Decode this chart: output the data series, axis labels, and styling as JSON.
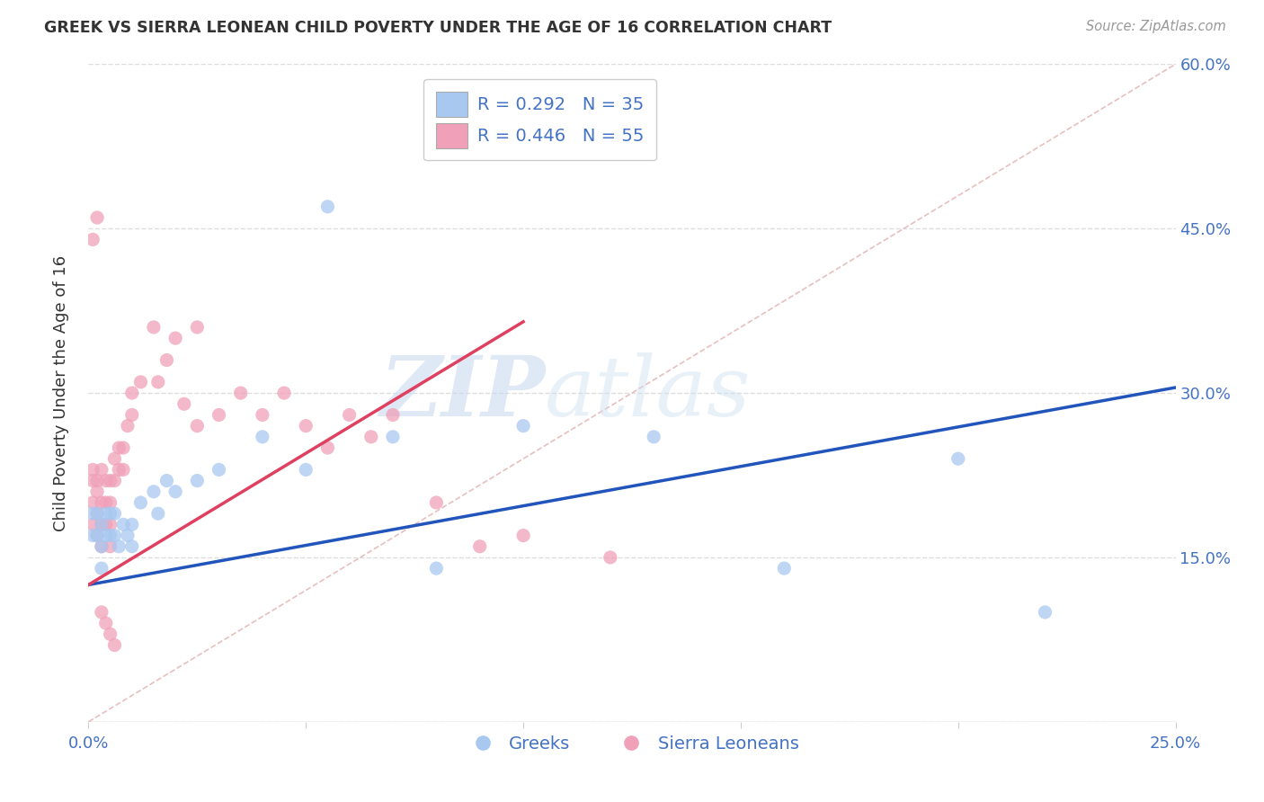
{
  "title": "GREEK VS SIERRA LEONEAN CHILD POVERTY UNDER THE AGE OF 16 CORRELATION CHART",
  "source": "Source: ZipAtlas.com",
  "xlim": [
    0.0,
    0.25
  ],
  "ylim": [
    0.0,
    0.6
  ],
  "ylabel": "Child Poverty Under the Age of 16",
  "legend_greek": "Greeks",
  "legend_sierra": "Sierra Leoneans",
  "greek_R": "0.292",
  "greek_N": "35",
  "sierra_R": "0.446",
  "sierra_N": "55",
  "greek_color": "#a8c8f0",
  "sierra_color": "#f0a0b8",
  "greek_line_color": "#2255bb",
  "sierra_line_color": "#e04060",
  "diagonal_color": "#e0b0b0",
  "background_color": "#ffffff",
  "watermark_zip": "ZIP",
  "watermark_atlas": "atlas",
  "grid_color": "#dddddd",
  "tick_color": "#4472c4",
  "title_color": "#333333",
  "source_color": "#999999",
  "ylabel_color": "#333333",
  "greek_x": [
    0.001,
    0.001,
    0.002,
    0.002,
    0.003,
    0.003,
    0.003,
    0.004,
    0.004,
    0.005,
    0.005,
    0.006,
    0.006,
    0.007,
    0.008,
    0.009,
    0.01,
    0.01,
    0.012,
    0.015,
    0.016,
    0.018,
    0.02,
    0.025,
    0.03,
    0.04,
    0.05,
    0.055,
    0.07,
    0.08,
    0.1,
    0.13,
    0.16,
    0.2,
    0.22
  ],
  "greek_y": [
    0.19,
    0.17,
    0.19,
    0.17,
    0.18,
    0.16,
    0.14,
    0.19,
    0.17,
    0.19,
    0.17,
    0.19,
    0.17,
    0.16,
    0.18,
    0.17,
    0.18,
    0.16,
    0.2,
    0.21,
    0.19,
    0.22,
    0.21,
    0.22,
    0.23,
    0.26,
    0.23,
    0.47,
    0.26,
    0.14,
    0.27,
    0.26,
    0.14,
    0.24,
    0.1
  ],
  "sierra_x": [
    0.001,
    0.001,
    0.001,
    0.001,
    0.002,
    0.002,
    0.002,
    0.002,
    0.003,
    0.003,
    0.003,
    0.003,
    0.004,
    0.004,
    0.004,
    0.005,
    0.005,
    0.005,
    0.005,
    0.006,
    0.006,
    0.007,
    0.007,
    0.008,
    0.008,
    0.009,
    0.01,
    0.01,
    0.012,
    0.015,
    0.016,
    0.018,
    0.02,
    0.022,
    0.025,
    0.025,
    0.03,
    0.035,
    0.04,
    0.045,
    0.05,
    0.055,
    0.06,
    0.065,
    0.07,
    0.08,
    0.09,
    0.1,
    0.12,
    0.001,
    0.002,
    0.003,
    0.004,
    0.005,
    0.006
  ],
  "sierra_y": [
    0.23,
    0.22,
    0.2,
    0.18,
    0.22,
    0.21,
    0.19,
    0.17,
    0.23,
    0.2,
    0.18,
    0.16,
    0.22,
    0.2,
    0.18,
    0.22,
    0.2,
    0.18,
    0.16,
    0.24,
    0.22,
    0.25,
    0.23,
    0.25,
    0.23,
    0.27,
    0.3,
    0.28,
    0.31,
    0.36,
    0.31,
    0.33,
    0.35,
    0.29,
    0.36,
    0.27,
    0.28,
    0.3,
    0.28,
    0.3,
    0.27,
    0.25,
    0.28,
    0.26,
    0.28,
    0.2,
    0.16,
    0.17,
    0.15,
    0.44,
    0.46,
    0.1,
    0.09,
    0.08,
    0.07
  ],
  "greek_line_x0": 0.0,
  "greek_line_y0": 0.125,
  "greek_line_x1": 0.25,
  "greek_line_y1": 0.305,
  "sierra_line_x0": 0.0,
  "sierra_line_y0": 0.125,
  "sierra_line_x1": 0.1,
  "sierra_line_y1": 0.365
}
